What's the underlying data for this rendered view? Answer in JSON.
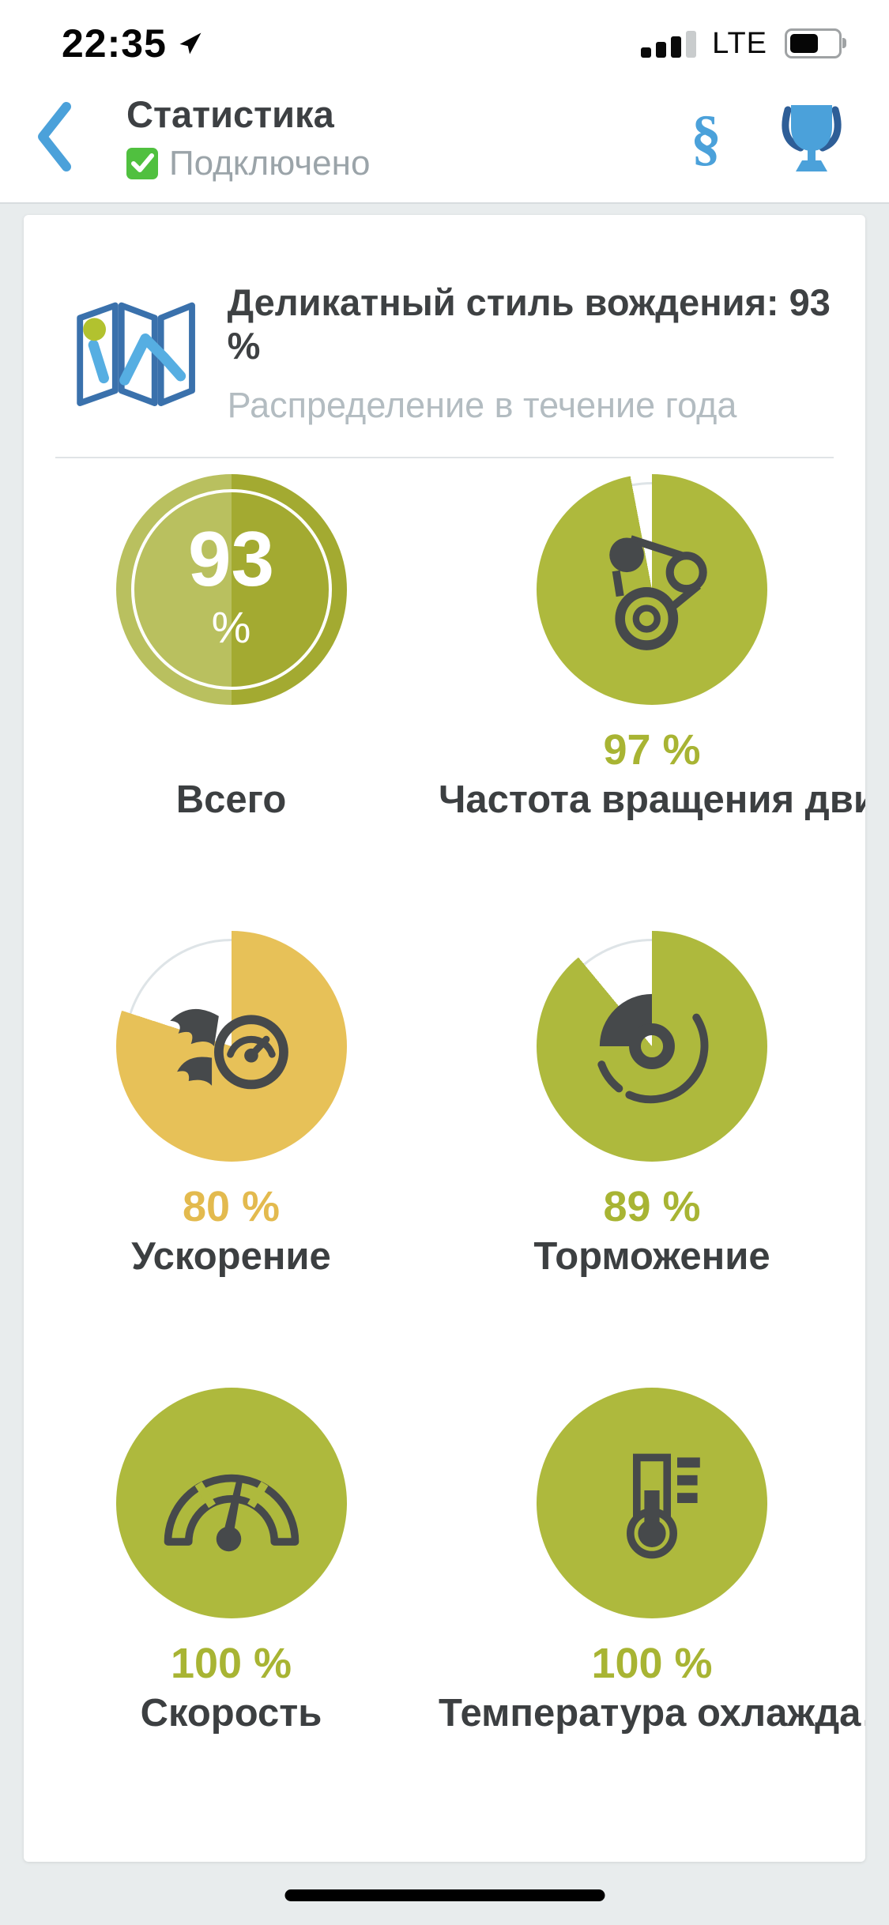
{
  "status_bar": {
    "time": "22:35",
    "network": "LTE",
    "signal_bars_filled": 3,
    "signal_bars_total": 4,
    "battery_fill_pct": 68
  },
  "header": {
    "title": "Статистика",
    "connection_status": "Подключено",
    "section_symbol": "§"
  },
  "card": {
    "title": "Деликатный стиль вождения: 93 %",
    "subtitle": "Распределение в течение года"
  },
  "gauges": [
    {
      "id": "total",
      "label": "Всего",
      "value": 93,
      "display": "93",
      "unit": "%",
      "split": true,
      "fill_light": "#b9c05f",
      "fill_dark": "#a3aa31",
      "value_label": "",
      "value_color": "",
      "icon": "none"
    },
    {
      "id": "engine-rpm",
      "label": "Частота вращения дви…",
      "value": 97,
      "value_label": "97 %",
      "fill": "#aeb93d",
      "value_color": "#a8b433",
      "icon": "engine-belt"
    },
    {
      "id": "acceleration",
      "label": "Ускорение",
      "value": 80,
      "value_label": "80 %",
      "fill": "#e7c158",
      "value_color": "#e3ba4e",
      "icon": "flame-speedometer"
    },
    {
      "id": "braking",
      "label": "Торможение",
      "value": 89,
      "value_label": "89 %",
      "fill": "#aeb93d",
      "value_color": "#a8b433",
      "icon": "brake-disc"
    },
    {
      "id": "speed",
      "label": "Скорость",
      "value": 100,
      "value_label": "100 %",
      "fill": "#aeb93d",
      "value_color": "#a8b433",
      "icon": "speedometer"
    },
    {
      "id": "coolant-temp",
      "label": "Температура охлажда…",
      "value": 100,
      "value_label": "100 %",
      "fill": "#aeb93d",
      "value_color": "#a8b433",
      "icon": "thermometer"
    }
  ],
  "colors": {
    "accent_blue": "#4ba1da",
    "dark_blue": "#2e5e97",
    "map_outline_blue": "#3a71ac",
    "connected_green": "#50c03f",
    "gauge_green": "#aeb93d",
    "gauge_green_light_half": "#b9c05f",
    "gauge_green_dark_half": "#a3aa31",
    "gauge_yellow": "#e7c158",
    "icon_dark": "#46494b",
    "text_dark": "#3c3f41",
    "text_gray": "#9ba4a9",
    "page_bg": "#e8eced"
  }
}
